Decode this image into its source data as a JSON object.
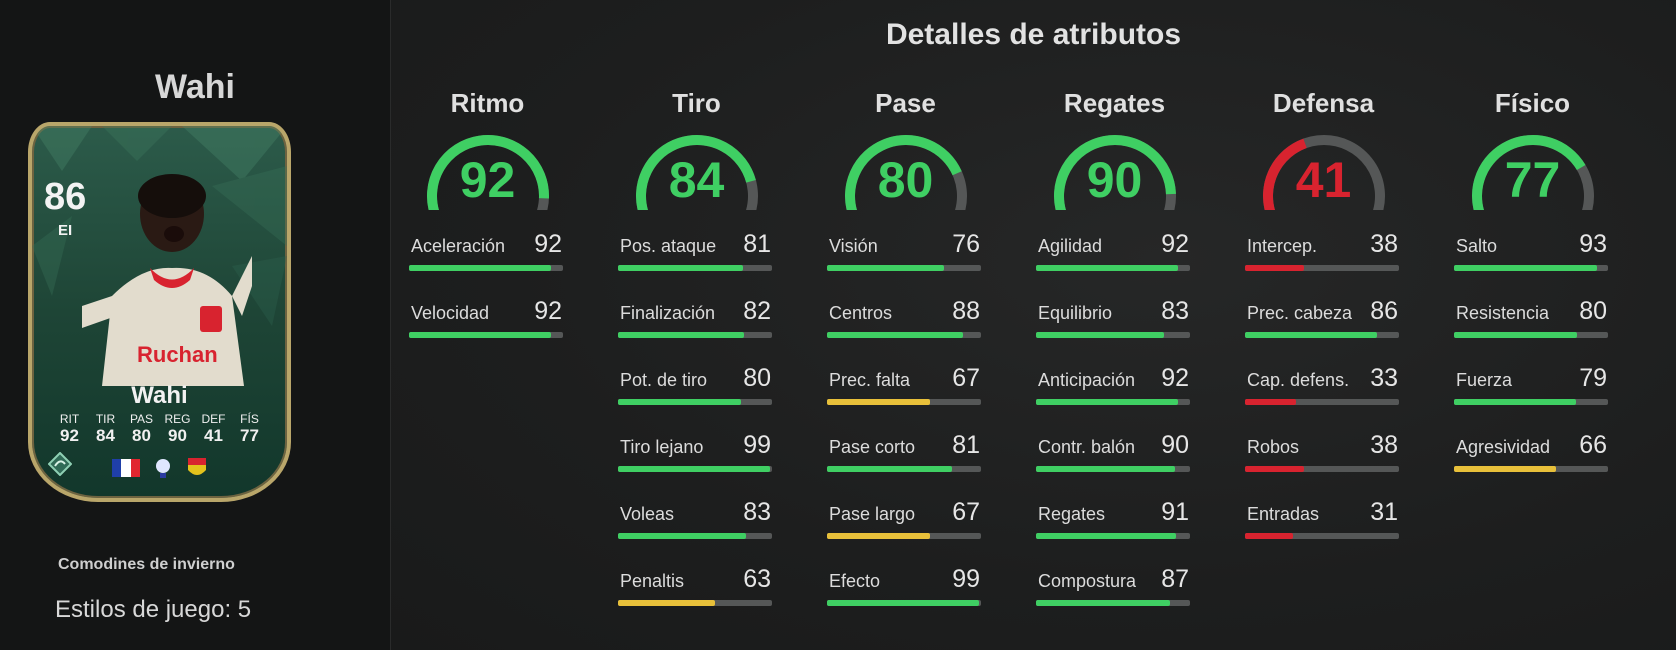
{
  "colors": {
    "green": "#3fcf63",
    "yellow": "#e8c03a",
    "red": "#d8232f",
    "track": "#555757"
  },
  "player": {
    "name": "Wahi",
    "rating": "86",
    "position": "EI",
    "card_name": "Wahi",
    "card_stats": [
      {
        "label": "RIT",
        "value": "92"
      },
      {
        "label": "TIR",
        "value": "84"
      },
      {
        "label": "PAS",
        "value": "80"
      },
      {
        "label": "REG",
        "value": "90"
      },
      {
        "label": "DEF",
        "value": "41"
      },
      {
        "label": "FÍS",
        "value": "77"
      }
    ],
    "card_badge": "Ruchan",
    "promo": "Comodines de invierno",
    "playstyles": "Estilos de juego: 5"
  },
  "section_title": "Detalles de atributos",
  "categories": [
    {
      "name": "Ritmo",
      "value": 92,
      "stats": [
        {
          "label": "Aceleración",
          "value": 92
        },
        {
          "label": "Velocidad",
          "value": 92
        }
      ]
    },
    {
      "name": "Tiro",
      "value": 84,
      "stats": [
        {
          "label": "Pos. ataque",
          "value": 81
        },
        {
          "label": "Finalización",
          "value": 82
        },
        {
          "label": "Pot. de tiro",
          "value": 80
        },
        {
          "label": "Tiro lejano",
          "value": 99
        },
        {
          "label": "Voleas",
          "value": 83
        },
        {
          "label": "Penaltis",
          "value": 63
        }
      ]
    },
    {
      "name": "Pase",
      "value": 80,
      "stats": [
        {
          "label": "Visión",
          "value": 76
        },
        {
          "label": "Centros",
          "value": 88
        },
        {
          "label": "Prec. falta",
          "value": 67
        },
        {
          "label": "Pase corto",
          "value": 81
        },
        {
          "label": "Pase largo",
          "value": 67
        },
        {
          "label": "Efecto",
          "value": 99
        }
      ]
    },
    {
      "name": "Regates",
      "value": 90,
      "stats": [
        {
          "label": "Agilidad",
          "value": 92
        },
        {
          "label": "Equilibrio",
          "value": 83
        },
        {
          "label": "Anticipación",
          "value": 92
        },
        {
          "label": "Contr. balón",
          "value": 90
        },
        {
          "label": "Regates",
          "value": 91
        },
        {
          "label": "Compostura",
          "value": 87
        }
      ]
    },
    {
      "name": "Defensa",
      "value": 41,
      "stats": [
        {
          "label": "Intercep.",
          "value": 38
        },
        {
          "label": "Prec. cabeza",
          "value": 86
        },
        {
          "label": "Cap. defens.",
          "value": 33
        },
        {
          "label": "Robos",
          "value": 38
        },
        {
          "label": "Entradas",
          "value": 31
        }
      ]
    },
    {
      "name": "Físico",
      "value": 77,
      "stats": [
        {
          "label": "Salto",
          "value": 93
        },
        {
          "label": "Resistencia",
          "value": 80
        },
        {
          "label": "Fuerza",
          "value": 79
        },
        {
          "label": "Agresividad",
          "value": 66
        }
      ]
    }
  ]
}
